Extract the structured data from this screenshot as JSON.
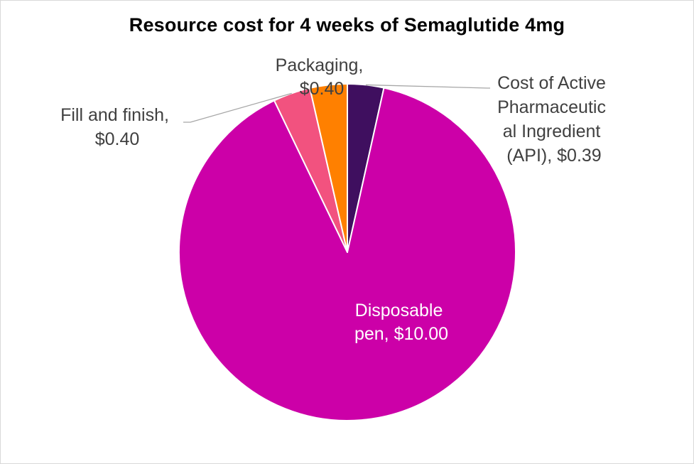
{
  "chart_data": {
    "type": "pie",
    "title": "Resource cost for 4 weeks of Semaglutide 4mg",
    "slices": [
      {
        "label": "Cost of Active Pharmaceutical Ingredient (API)",
        "value": 0.39,
        "value_label": "$0.39",
        "color": "#3f0f5f"
      },
      {
        "label": "Disposable pen",
        "value": 10.0,
        "value_label": "$10.00",
        "color": "#cc00a8"
      },
      {
        "label": "Fill and finish",
        "value": 0.4,
        "value_label": "$0.40",
        "color": "#f2527f"
      },
      {
        "label": "Packaging",
        "value": 0.4,
        "value_label": "$0.40",
        "color": "#ff8000"
      }
    ],
    "start_angle_deg": 0,
    "direction": "clockwise",
    "legend": "none",
    "data_labels": "category name and value",
    "leader_lines": true
  }
}
